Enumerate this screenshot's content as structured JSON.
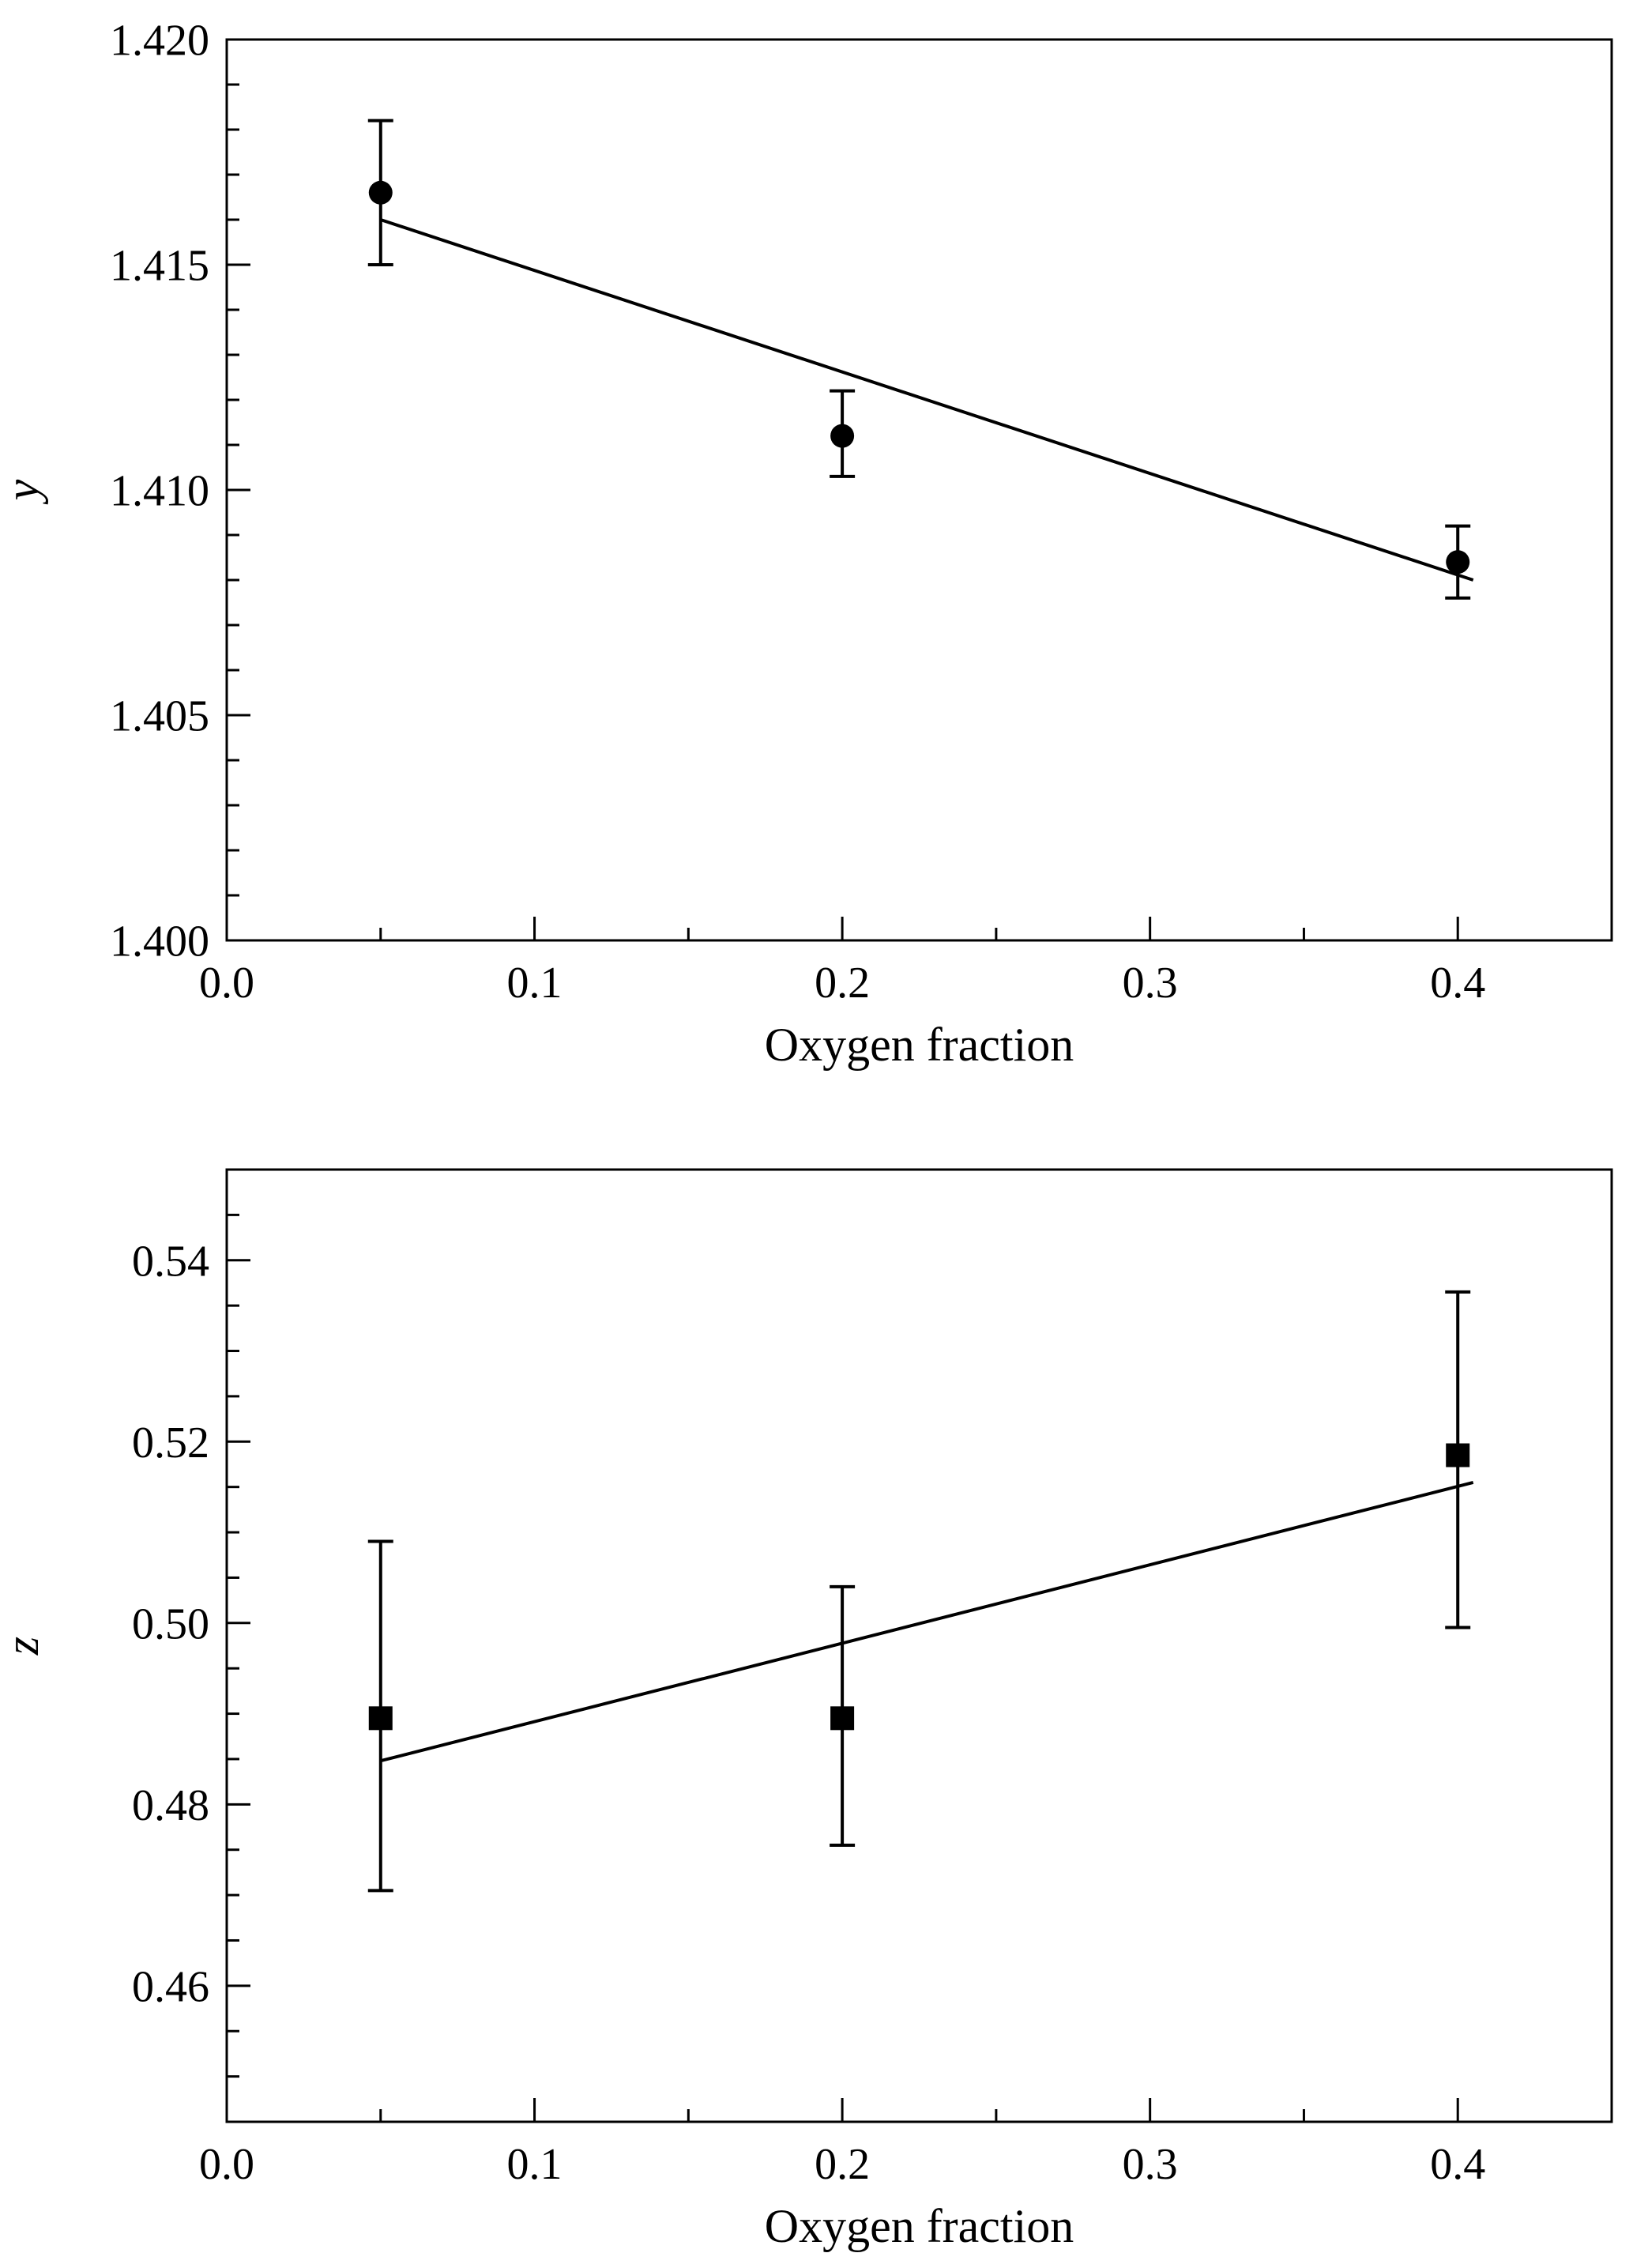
{
  "page": {
    "background": "#ffffff",
    "foreground": "#000000"
  },
  "chart_data": [
    {
      "type": "scatter",
      "marker": "circle",
      "title": "",
      "xlabel": "Oxygen fraction",
      "ylabel": "y",
      "xlim": [
        0.0,
        0.45
      ],
      "ylim": [
        1.4,
        1.42
      ],
      "xticks": [
        {
          "v": 0.0,
          "label": "0.0"
        },
        {
          "v": 0.1,
          "label": "0.1"
        },
        {
          "v": 0.2,
          "label": "0.2"
        },
        {
          "v": 0.3,
          "label": "0.3"
        },
        {
          "v": 0.4,
          "label": "0.4"
        }
      ],
      "xminor_step": 0.05,
      "yticks": [
        {
          "v": 1.4,
          "label": "1.400"
        },
        {
          "v": 1.405,
          "label": "1.405"
        },
        {
          "v": 1.41,
          "label": "1.410"
        },
        {
          "v": 1.415,
          "label": "1.415"
        },
        {
          "v": 1.42,
          "label": "1.420"
        }
      ],
      "yminor_step": 0.001,
      "points": [
        {
          "x": 0.05,
          "y": 1.4166,
          "err_up": 0.0016,
          "err_down": 0.0016
        },
        {
          "x": 0.2,
          "y": 1.4112,
          "err_up": 0.001,
          "err_down": 0.0009
        },
        {
          "x": 0.4,
          "y": 1.4084,
          "err_up": 0.0008,
          "err_down": 0.0008
        }
      ],
      "fit_line": {
        "x1": 0.05,
        "y1": 1.416,
        "x2": 0.405,
        "y2": 1.408
      },
      "color": "#000000",
      "grid": false,
      "legend": "none"
    },
    {
      "type": "scatter",
      "marker": "square",
      "title": "",
      "xlabel": "Oxygen fraction",
      "ylabel": "z",
      "xlim": [
        0.0,
        0.45
      ],
      "ylim": [
        0.445,
        0.55
      ],
      "xticks": [
        {
          "v": 0.0,
          "label": "0.0"
        },
        {
          "v": 0.1,
          "label": "0.1"
        },
        {
          "v": 0.2,
          "label": "0.2"
        },
        {
          "v": 0.3,
          "label": "0.3"
        },
        {
          "v": 0.4,
          "label": "0.4"
        }
      ],
      "xminor_step": 0.05,
      "yticks": [
        {
          "v": 0.46,
          "label": "0.46"
        },
        {
          "v": 0.48,
          "label": "0.48"
        },
        {
          "v": 0.5,
          "label": "0.50"
        },
        {
          "v": 0.52,
          "label": "0.52"
        },
        {
          "v": 0.54,
          "label": "0.54"
        }
      ],
      "yminor_step": 0.005,
      "points": [
        {
          "x": 0.05,
          "y": 0.4895,
          "err_up": 0.0195,
          "err_down": 0.019
        },
        {
          "x": 0.2,
          "y": 0.4895,
          "err_up": 0.0145,
          "err_down": 0.014
        },
        {
          "x": 0.4,
          "y": 0.5185,
          "err_up": 0.018,
          "err_down": 0.019
        }
      ],
      "fit_line": {
        "x1": 0.05,
        "y1": 0.4848,
        "x2": 0.405,
        "y2": 0.5155
      },
      "color": "#000000",
      "grid": false,
      "legend": "none"
    }
  ]
}
